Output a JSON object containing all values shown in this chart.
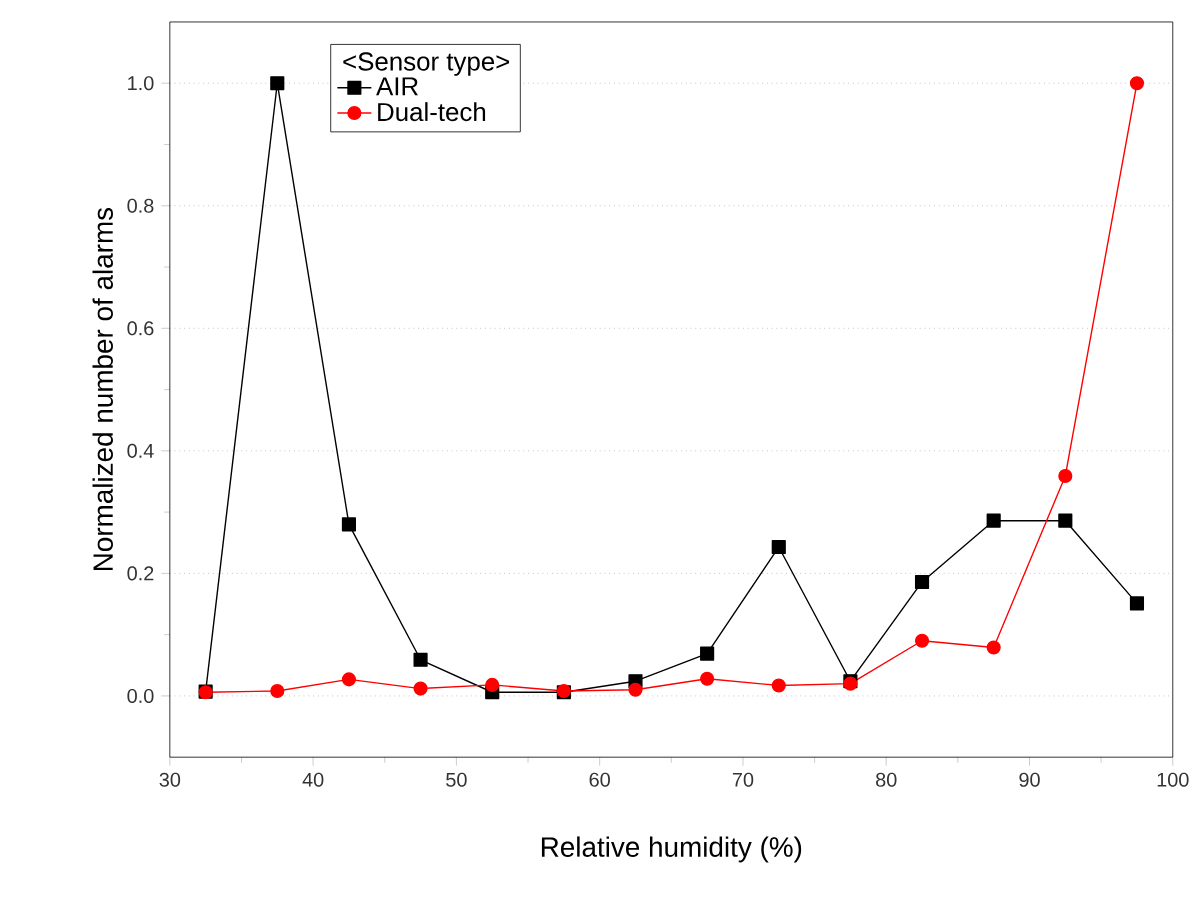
{
  "chart_data": {
    "type": "line",
    "xlabel": "Relative humidity (%)",
    "ylabel": "Normalized number of alarms",
    "legend_title": "<Sensor type>",
    "legend": "top left",
    "grid": "y",
    "x": [
      32.5,
      37.5,
      42.5,
      47.5,
      52.5,
      57.5,
      62.5,
      67.5,
      72.5,
      77.5,
      82.5,
      87.5,
      92.5,
      97.5
    ],
    "series": [
      {
        "name": "AIR",
        "color": "#000000",
        "marker": "square",
        "values": [
          0.007,
          1.0,
          0.28,
          0.059,
          0.006,
          0.006,
          0.024,
          0.069,
          0.243,
          0.024,
          0.186,
          0.286,
          0.286,
          0.151
        ]
      },
      {
        "name": "Dual-tech",
        "color": "#ff0000",
        "marker": "circle",
        "values": [
          0.006,
          0.008,
          0.027,
          0.012,
          0.018,
          0.008,
          0.01,
          0.028,
          0.017,
          0.02,
          0.09,
          0.079,
          0.359,
          1.0
        ]
      }
    ],
    "xlim": [
      30,
      100
    ],
    "xticks": [
      30,
      40,
      50,
      60,
      70,
      80,
      90,
      100
    ],
    "ylim": [
      -0.1,
      1.1
    ],
    "yticks": [
      {
        "value": 0,
        "label": "0.0"
      },
      {
        "value": 0.2,
        "label": "0.2"
      },
      {
        "value": 0.4,
        "label": "0.4"
      },
      {
        "value": 0.6,
        "label": "0.6"
      },
      {
        "value": 0.8,
        "label": "0.8"
      },
      {
        "value": 1.0,
        "label": "1.0"
      }
    ]
  }
}
